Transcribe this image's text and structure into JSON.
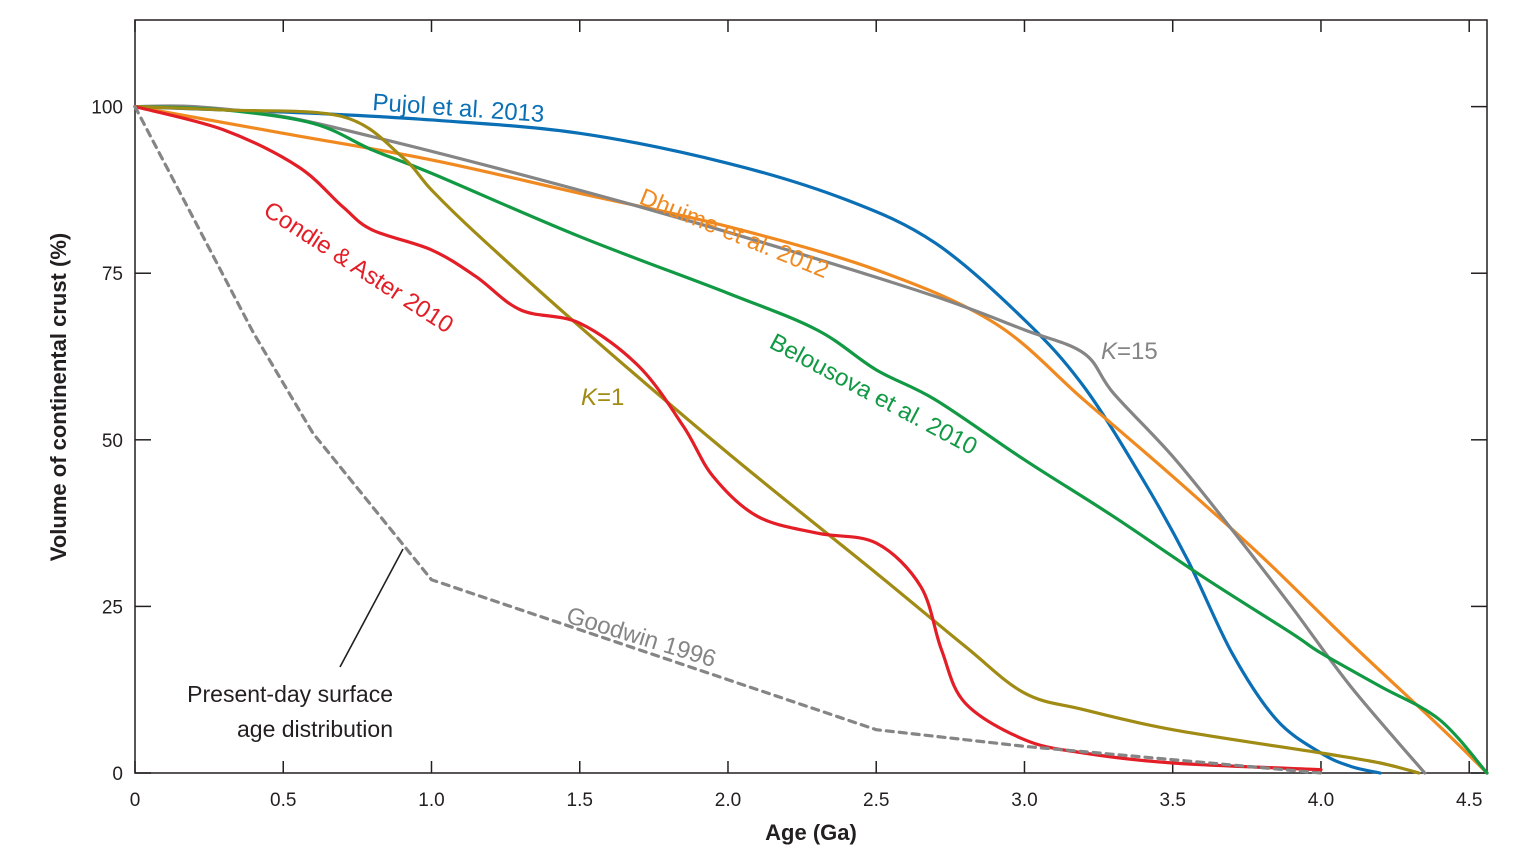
{
  "chart_data": {
    "type": "line",
    "xlabel": "Age (Ga)",
    "ylabel": "Volume of continental crust (%)",
    "xlim": [
      0,
      4.56
    ],
    "ylim": [
      0,
      113
    ],
    "x_ticks": [
      0,
      0.5,
      1.0,
      1.5,
      2.0,
      2.5,
      3.0,
      3.5,
      4.0,
      4.5
    ],
    "x_tick_labels": [
      "0",
      "0.5",
      "1.0",
      "1.5",
      "2.0",
      "2.5",
      "3.0",
      "3.5",
      "4.0",
      "4.5"
    ],
    "y_ticks": [
      0,
      25,
      50,
      75,
      100
    ],
    "y_tick_labels": [
      "0",
      "25",
      "50",
      "75",
      "100"
    ],
    "grid": false,
    "series": [
      {
        "name": "Pujol et al. 2013",
        "color": "#0a6fb5",
        "x": [
          0,
          0.3,
          0.6,
          1.0,
          1.5,
          2.0,
          2.4,
          2.7,
          3.0,
          3.2,
          3.4,
          3.55,
          3.7,
          3.85,
          4.0,
          4.1,
          4.2
        ],
        "y": [
          100,
          99.5,
          99,
          98,
          96,
          91.5,
          86,
          79.5,
          68,
          58,
          44,
          32,
          18,
          8,
          3,
          1,
          0
        ]
      },
      {
        "name": "Dhuime et al. 2012",
        "color": "#f08a20",
        "x": [
          0,
          0.5,
          1.0,
          1.5,
          2.0,
          2.5,
          2.9,
          3.2,
          3.5,
          3.8,
          4.1,
          4.4,
          4.56
        ],
        "y": [
          100,
          96,
          92,
          87,
          82,
          75.5,
          67.5,
          56,
          44.5,
          32.5,
          19.5,
          7,
          0
        ]
      },
      {
        "name": "K=15",
        "color": "#858585",
        "x": [
          0,
          0.2,
          0.5,
          0.8,
          1.2,
          1.7,
          2.2,
          2.7,
          3.0,
          3.2,
          3.3,
          3.5,
          3.7,
          3.9,
          4.1,
          4.35
        ],
        "y": [
          100,
          100,
          98.5,
          95.5,
          91,
          85,
          78.5,
          71.5,
          66.5,
          63,
          57,
          47.5,
          36.5,
          25,
          13,
          0
        ]
      },
      {
        "name": "Belousova et al. 2010",
        "color": "#119944",
        "x": [
          0,
          0.3,
          0.6,
          0.8,
          1.0,
          1.5,
          2.0,
          2.3,
          2.5,
          2.7,
          3.0,
          3.3,
          3.6,
          3.9,
          4.0,
          4.2,
          4.4,
          4.56
        ],
        "y": [
          100,
          99.5,
          97.5,
          93.5,
          90,
          80.5,
          72,
          66.5,
          60.5,
          56,
          47,
          38.5,
          29.5,
          21,
          18,
          13,
          8,
          0
        ]
      },
      {
        "name": "K=1",
        "color": "#a08b14",
        "x": [
          0,
          0.3,
          0.7,
          0.9,
          1.0,
          1.15,
          1.5,
          2.0,
          2.5,
          2.8,
          3.0,
          3.2,
          3.5,
          4.0,
          4.2,
          4.33
        ],
        "y": [
          100,
          99.5,
          98.5,
          92.5,
          87.5,
          81,
          67,
          48,
          30,
          19,
          12,
          9.5,
          6.5,
          3,
          1.5,
          0
        ]
      },
      {
        "name": "Condie & Aster 2010",
        "color": "#e31e26",
        "x": [
          0,
          0.3,
          0.55,
          0.7,
          0.8,
          1.0,
          1.15,
          1.3,
          1.5,
          1.7,
          1.85,
          1.95,
          2.1,
          2.3,
          2.5,
          2.65,
          2.72,
          2.8,
          3.0,
          3.2,
          3.5,
          4.0
        ],
        "y": [
          100,
          96.5,
          91,
          85,
          81.5,
          78.5,
          74.5,
          69.5,
          67.5,
          61,
          52,
          44.5,
          38.5,
          36,
          34.5,
          28,
          18.5,
          10.5,
          5,
          3,
          1.5,
          0.5
        ]
      },
      {
        "name": "Goodwin 1996",
        "color": "#858585",
        "dashed": true,
        "x": [
          0,
          0.2,
          0.4,
          0.6,
          0.8,
          1.0,
          1.5,
          2.0,
          2.5,
          3.0,
          3.5,
          4.0
        ],
        "y": [
          100,
          83,
          66,
          51,
          40,
          29,
          21.5,
          14,
          6.5,
          4,
          2,
          0
        ]
      }
    ],
    "series_labels": [
      "Pujol et al. 2013",
      "Dhuime et al. 2012",
      "Condie & Aster 2010",
      "Belousova et al. 2010",
      "Goodwin 1996"
    ],
    "k_labels": [
      {
        "italic": "K",
        "rest": "=15",
        "color": "#858585"
      },
      {
        "italic": "K",
        "rest": "=1",
        "color": "#a08b14"
      }
    ],
    "annotation": {
      "line1": "Present-day surface",
      "line2": "age distribution"
    }
  }
}
